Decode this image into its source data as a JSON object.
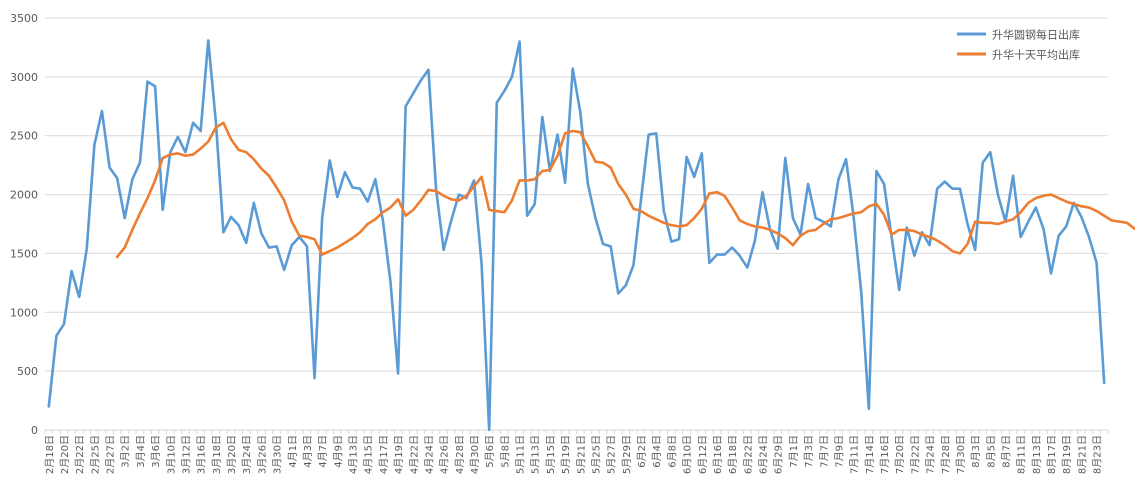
{
  "chart_data": {
    "type": "line",
    "title": "",
    "xlabel": "",
    "ylabel": "",
    "ylim": [
      0,
      3500
    ],
    "yticks": [
      0,
      500,
      1000,
      1500,
      2000,
      2500,
      3000,
      3500
    ],
    "grid": "horizontal",
    "legend_position": "top-right",
    "x_tick_labels": [
      "2月18日",
      "2月20日",
      "2月22日",
      "2月25日",
      "2月27日",
      "3月2日",
      "3月4日",
      "3月6日",
      "3月10日",
      "3月12日",
      "3月16日",
      "3月18日",
      "3月20日",
      "3月24日",
      "3月26日",
      "3月30日",
      "4月1日",
      "4月3日",
      "4月7日",
      "4月9日",
      "4月13日",
      "4月15日",
      "4月17日",
      "4月19日",
      "4月22日",
      "4月24日",
      "4月26日",
      "4月28日",
      "4月30日",
      "5月6日",
      "5月8日",
      "5月11日",
      "5月13日",
      "5月15日",
      "5月19日",
      "5月21日",
      "5月25日",
      "5月27日",
      "5月29日",
      "6月2日",
      "6月4日",
      "6月8日",
      "6月10日",
      "6月12日",
      "6月16日",
      "6月18日",
      "6月22日",
      "6月24日",
      "6月29日",
      "7月1日",
      "7月3日",
      "7月7日",
      "7月9日",
      "7月11日",
      "7月14日",
      "7月16日",
      "7月20日",
      "7月22日",
      "7月24日",
      "7月28日",
      "7月30日",
      "8月3日",
      "8月5日",
      "8月7日",
      "8月11日",
      "8月13日",
      "8月17日",
      "8月19日",
      "8月21日",
      "8月23日"
    ],
    "series": [
      {
        "name": "升华圆钢每日出库",
        "color": "#5B9BD5",
        "values": [
          200,
          800,
          900,
          1350,
          1130,
          1540,
          2420,
          2710,
          2230,
          2140,
          1800,
          2130,
          2270,
          2960,
          2920,
          1870,
          2360,
          2490,
          2360,
          2610,
          2540,
          3310,
          2620,
          1680,
          1810,
          1740,
          1590,
          1930,
          1670,
          1550,
          1560,
          1360,
          1570,
          1640,
          1560,
          440,
          1800,
          2290,
          1980,
          2190,
          2060,
          2050,
          1940,
          2130,
          1780,
          1260,
          480,
          2750,
          2860,
          2970,
          3060,
          2050,
          1530,
          1780,
          2000,
          1970,
          2120,
          1410,
          0,
          2780,
          2880,
          3000,
          3300,
          1820,
          1920,
          2660,
          2200,
          2510,
          2100,
          3070,
          2700,
          2090,
          1800,
          1580,
          1560,
          1160,
          1230,
          1400,
          1960,
          2510,
          2520,
          1860,
          1600,
          1620,
          2320,
          2150,
          2350,
          1420,
          1490,
          1490,
          1550,
          1480,
          1380,
          1610,
          2020,
          1700,
          1540,
          2310,
          1800,
          1660,
          2090,
          1800,
          1770,
          1730,
          2130,
          2300,
          1810,
          1170,
          180,
          2200,
          2090,
          1640,
          1190,
          1720,
          1480,
          1680,
          1570,
          2050,
          2110,
          2050,
          2050,
          1750,
          1530,
          2270,
          2360,
          2000,
          1770,
          2160,
          1640,
          1770,
          1890,
          1710,
          1330,
          1650,
          1730,
          1930,
          1810,
          1640,
          1420,
          400
        ]
      },
      {
        "name": "升华十天平均出库",
        "color": "#ED7D31",
        "start_index": 9,
        "values": [
          1470,
          1550,
          1700,
          1840,
          1970,
          2120,
          2310,
          2340,
          2350,
          2330,
          2340,
          2390,
          2450,
          2570,
          2610,
          2470,
          2380,
          2360,
          2300,
          2220,
          2160,
          2060,
          1950,
          1770,
          1650,
          1640,
          1620,
          1490,
          1520,
          1550,
          1590,
          1630,
          1680,
          1750,
          1790,
          1850,
          1890,
          1960,
          1820,
          1870,
          1950,
          2040,
          2030,
          1990,
          1960,
          1950,
          1990,
          2070,
          2150,
          1870,
          1860,
          1850,
          1950,
          2120,
          2120,
          2130,
          2200,
          2210,
          2330,
          2520,
          2540,
          2530,
          2410,
          2280,
          2270,
          2230,
          2090,
          2000,
          1880,
          1860,
          1820,
          1790,
          1760,
          1740,
          1730,
          1740,
          1800,
          1880,
          2010,
          2020,
          1990,
          1890,
          1780,
          1750,
          1730,
          1720,
          1700,
          1670,
          1630,
          1570,
          1650,
          1690,
          1700,
          1750,
          1790,
          1800,
          1820,
          1840,
          1850,
          1900,
          1920,
          1830,
          1660,
          1700,
          1700,
          1690,
          1660,
          1640,
          1610,
          1570,
          1520,
          1500,
          1580,
          1770,
          1760,
          1760,
          1750,
          1770,
          1790,
          1850,
          1930,
          1970,
          1990,
          2000,
          1970,
          1940,
          1920,
          1900,
          1890,
          1860,
          1820,
          1780,
          1770,
          1760,
          1710,
          1690
        ]
      }
    ]
  }
}
